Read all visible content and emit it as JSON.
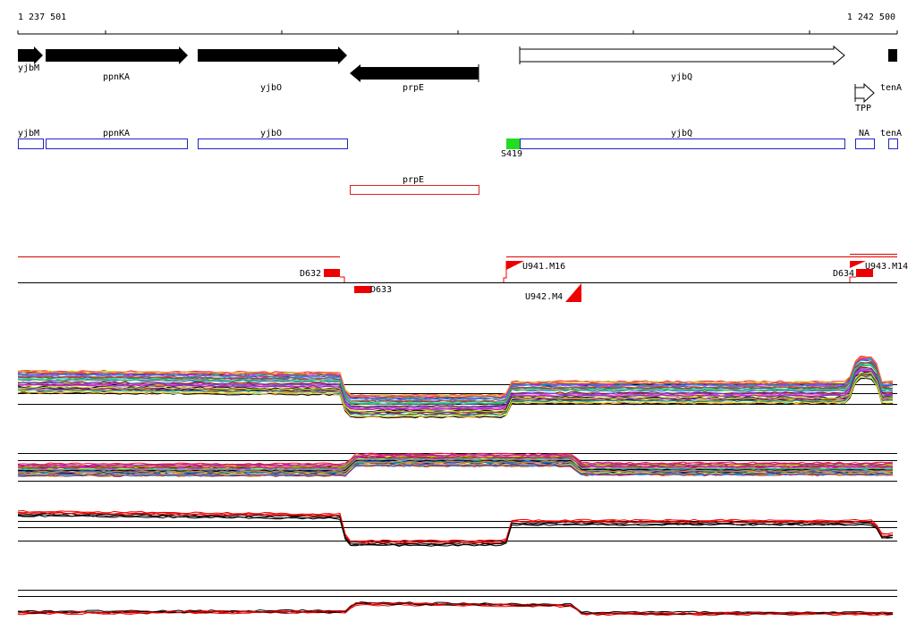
{
  "ruler": {
    "start": "1 237 501",
    "end": "1 242 500"
  },
  "genes": [
    "yjbM",
    "ppnKA",
    "yjbO",
    "prpE",
    "yjbQ",
    "TPP",
    "tenA"
  ],
  "features": [
    "yjbM",
    "ppnKA",
    "yjbO",
    "S419",
    "yjbQ",
    "NA",
    "tenA",
    "prpE"
  ],
  "probes": [
    "D632",
    "D633",
    "U941.M16",
    "U942.M4",
    "D634",
    "U943.M14"
  ]
}
